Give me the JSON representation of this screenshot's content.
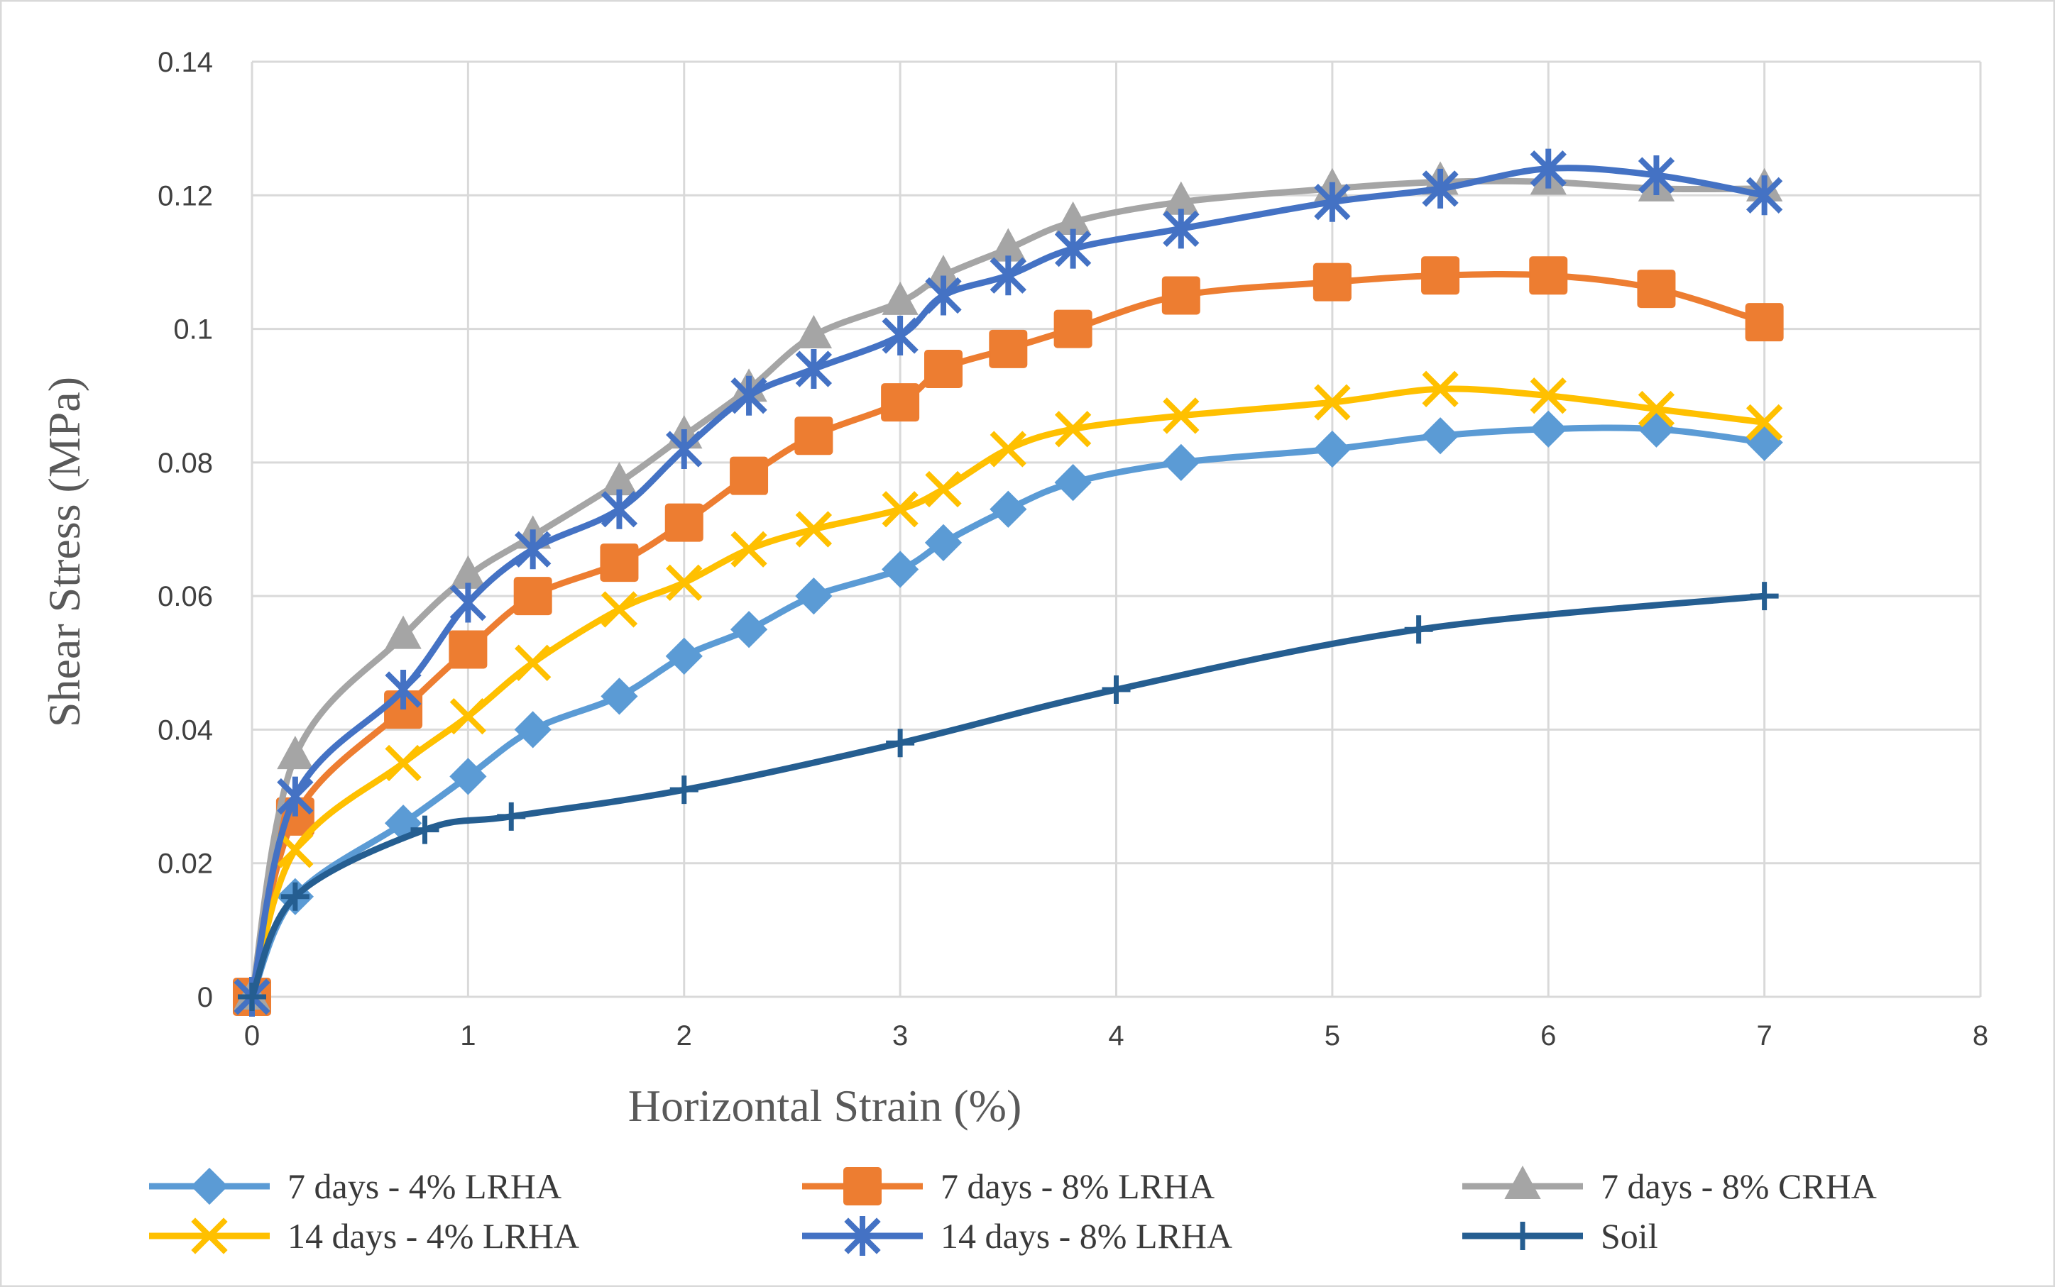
{
  "chart_data": {
    "type": "line",
    "title": "",
    "xlabel": "Horizontal Strain (%)",
    "ylabel": "Shear Stress (MPa)",
    "xlim": [
      0,
      8
    ],
    "ylim": [
      0,
      0.14
    ],
    "x_ticks": [
      "0",
      "1",
      "2",
      "3",
      "4",
      "5",
      "6",
      "7",
      "8"
    ],
    "y_ticks": [
      "0",
      "0.02",
      "0.04",
      "0.06",
      "0.08",
      "0.1",
      "0.12",
      "0.14"
    ],
    "grid": true,
    "legend_position": "bottom",
    "series": [
      {
        "name": "7 days - 4% LRHA",
        "color": "#5B9BD5",
        "marker": "diamond",
        "x": [
          0,
          0.2,
          0.7,
          1.0,
          1.3,
          1.7,
          2.0,
          2.3,
          2.6,
          3.0,
          3.2,
          3.5,
          3.8,
          4.3,
          5.0,
          5.5,
          6.0,
          6.5,
          7.0
        ],
        "y": [
          0,
          0.015,
          0.026,
          0.033,
          0.04,
          0.045,
          0.051,
          0.055,
          0.06,
          0.064,
          0.068,
          0.073,
          0.077,
          0.08,
          0.082,
          0.084,
          0.085,
          0.085,
          0.083
        ]
      },
      {
        "name": "7 days - 8% LRHA",
        "color": "#ED7D31",
        "marker": "square",
        "x": [
          0,
          0.2,
          0.7,
          1.0,
          1.3,
          1.7,
          2.0,
          2.3,
          2.6,
          3.0,
          3.2,
          3.5,
          3.8,
          4.3,
          5.0,
          5.5,
          6.0,
          6.5,
          7.0
        ],
        "y": [
          0,
          0.027,
          0.043,
          0.052,
          0.06,
          0.065,
          0.071,
          0.078,
          0.084,
          0.089,
          0.094,
          0.097,
          0.1,
          0.105,
          0.107,
          0.108,
          0.108,
          0.106,
          0.101
        ]
      },
      {
        "name": "7 days - 8% CRHA",
        "color": "#A5A5A5",
        "marker": "triangle",
        "x": [
          0,
          0.2,
          0.7,
          1.0,
          1.3,
          1.7,
          2.0,
          2.3,
          2.6,
          3.0,
          3.2,
          3.5,
          3.8,
          4.3,
          5.0,
          5.5,
          6.0,
          6.5,
          7.0
        ],
        "y": [
          0,
          0.036,
          0.054,
          0.063,
          0.069,
          0.077,
          0.084,
          0.091,
          0.099,
          0.104,
          0.108,
          0.112,
          0.116,
          0.119,
          0.121,
          0.122,
          0.122,
          0.121,
          0.121
        ]
      },
      {
        "name": "14 days - 4% LRHA",
        "color": "#FFC000",
        "marker": "x",
        "x": [
          0,
          0.2,
          0.7,
          1.0,
          1.3,
          1.7,
          2.0,
          2.3,
          2.6,
          3.0,
          3.2,
          3.5,
          3.8,
          4.3,
          5.0,
          5.5,
          6.0,
          6.5,
          7.0
        ],
        "y": [
          0,
          0.022,
          0.035,
          0.042,
          0.05,
          0.058,
          0.062,
          0.067,
          0.07,
          0.073,
          0.076,
          0.082,
          0.085,
          0.087,
          0.089,
          0.091,
          0.09,
          0.088,
          0.086
        ]
      },
      {
        "name": "14 days - 8% LRHA",
        "color": "#4472C4",
        "marker": "star",
        "x": [
          0,
          0.2,
          0.7,
          1.0,
          1.3,
          1.7,
          2.0,
          2.3,
          2.6,
          3.0,
          3.2,
          3.5,
          3.8,
          4.3,
          5.0,
          5.5,
          6.0,
          6.5,
          7.0
        ],
        "y": [
          0,
          0.03,
          0.046,
          0.059,
          0.067,
          0.073,
          0.082,
          0.09,
          0.094,
          0.099,
          0.105,
          0.108,
          0.112,
          0.115,
          0.119,
          0.121,
          0.124,
          0.123,
          0.12
        ]
      },
      {
        "name": "Soil",
        "color": "#255E91",
        "marker": "plus",
        "x": [
          0,
          0.2,
          0.8,
          1.2,
          2.0,
          3.0,
          4.0,
          5.4,
          7.0
        ],
        "y": [
          0,
          0.015,
          0.025,
          0.027,
          0.031,
          0.038,
          0.046,
          0.055,
          0.06
        ]
      }
    ]
  }
}
